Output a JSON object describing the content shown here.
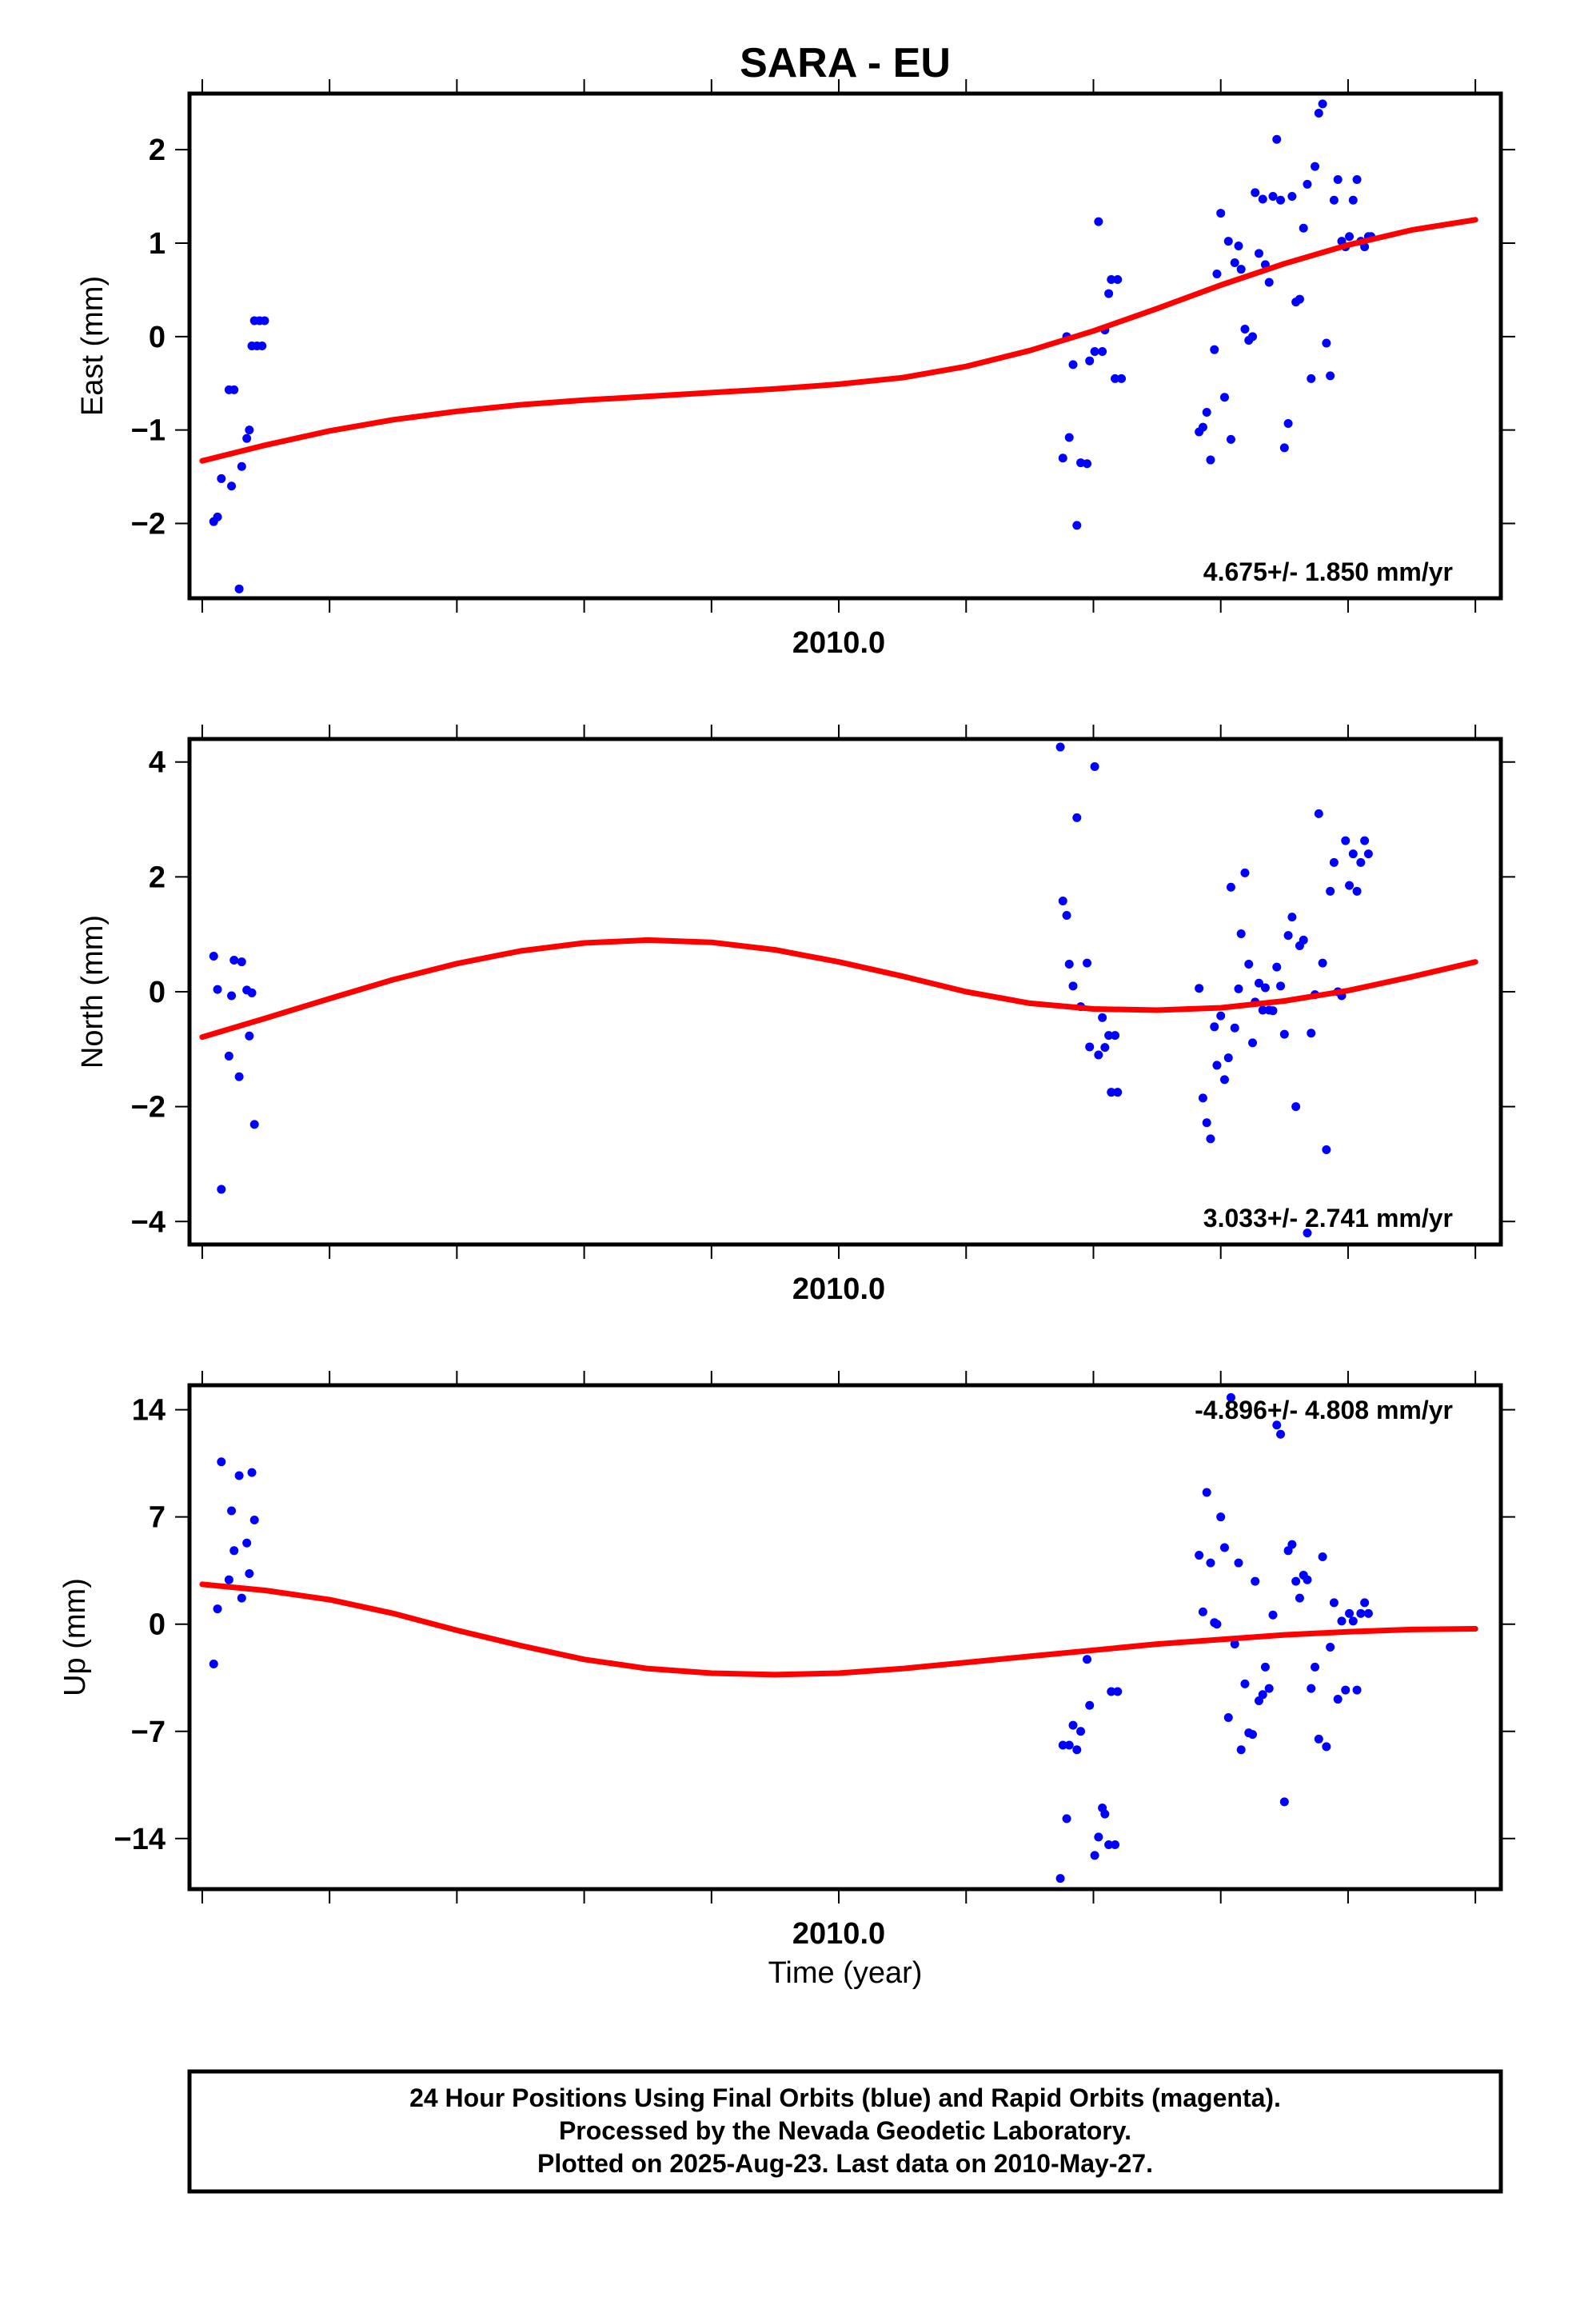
{
  "colors": {
    "data_points": "#0000ff",
    "fit_line": "#ff0000",
    "frame": "#000000",
    "background": "#ffffff"
  },
  "footer": {
    "lines": [
      "24 Hour Positions Using Final Orbits (blue) and Rapid Orbits (magenta).",
      "Processed by the Nevada Geodetic Laboratory.",
      "Plotted on 2025-Aug-23. Last data on 2010-May-27."
    ]
  },
  "chart_data": [
    {
      "type": "scatter",
      "title": "SARA - EU",
      "xlabel": "",
      "ylabel": "East (mm)",
      "xlim": [
        2009.49,
        2010.52
      ],
      "ylim": [
        -2.8,
        2.6
      ],
      "yticks": [
        2,
        1,
        0,
        -1,
        -2
      ],
      "ytick_labels": [
        "2",
        "1",
        "0",
        "−1",
        "−2"
      ],
      "xticks": [
        2009.5,
        2009.6,
        2009.7,
        2009.8,
        2009.9,
        2010.0,
        2010.1,
        2010.2,
        2010.3,
        2010.4,
        2010.5
      ],
      "xtick_labels": [
        "",
        "",
        "",
        "",
        "",
        "2010.0",
        "",
        "",
        "",
        "",
        ""
      ],
      "grid": false,
      "rate_text": "4.675+/- 1.850 mm/yr",
      "rate_position": "bottom-right",
      "series": [
        {
          "kind": "points",
          "x": [
            2009.509,
            2009.512,
            2009.515,
            2009.521,
            2009.523,
            2009.525,
            2009.529,
            2009.531,
            2009.535,
            2009.537,
            2009.539,
            2009.541,
            2009.543,
            2009.545,
            2009.547,
            2009.549
          ],
          "y": [
            -1.98,
            -1.93,
            -1.52,
            -0.57,
            -1.6,
            -0.57,
            -2.7,
            -1.39,
            -1.09,
            -1.0,
            -0.1,
            0.17,
            -0.1,
            0.17,
            -0.1,
            0.17
          ]
        },
        {
          "kind": "points",
          "x": [
            2010.176,
            2010.179,
            2010.181,
            2010.184,
            2010.187,
            2010.19,
            2010.195,
            2010.197,
            2010.201,
            2010.204,
            2010.207,
            2010.209,
            2010.212,
            2010.214,
            2010.217,
            2010.219,
            2010.222
          ],
          "y": [
            -1.3,
            0.0,
            -1.08,
            -0.3,
            -2.02,
            -1.35,
            -1.36,
            -0.26,
            -0.16,
            1.23,
            -0.16,
            0.07,
            0.46,
            0.61,
            -0.45,
            0.61,
            -0.45
          ]
        },
        {
          "kind": "points",
          "x": [
            2010.283,
            2010.286,
            2010.289,
            2010.292,
            2010.295,
            2010.297,
            2010.3,
            2010.303,
            2010.306,
            2010.308,
            2010.311,
            2010.314,
            2010.316,
            2010.319,
            2010.322,
            2010.325,
            2010.327,
            2010.33,
            2010.333,
            2010.335,
            2010.338,
            2010.341,
            2010.344,
            2010.347,
            2010.35,
            2010.353,
            2010.356,
            2010.359,
            2010.362,
            2010.365,
            2010.368,
            2010.371,
            2010.374,
            2010.377,
            2010.38,
            2010.383,
            2010.386,
            2010.389,
            2010.392,
            2010.395,
            2010.398,
            2010.401,
            2010.404,
            2010.407,
            2010.41,
            2010.413,
            2010.416,
            2010.418
          ],
          "y": [
            -1.02,
            -0.97,
            -0.81,
            -1.32,
            -0.14,
            0.67,
            1.32,
            -0.65,
            1.02,
            -1.1,
            0.79,
            0.97,
            0.72,
            0.08,
            -0.04,
            0.0,
            1.54,
            0.89,
            1.47,
            0.77,
            0.58,
            1.5,
            2.11,
            1.46,
            -1.19,
            -0.93,
            1.5,
            0.37,
            0.4,
            1.16,
            1.63,
            -0.45,
            1.82,
            2.39,
            2.49,
            -0.07,
            -0.42,
            1.46,
            1.68,
            1.02,
            0.96,
            1.07,
            1.46,
            1.68,
            1.02,
            0.96,
            1.07,
            1.07
          ]
        },
        {
          "kind": "fit",
          "x": [
            2009.5,
            2009.55,
            2009.6,
            2009.65,
            2009.7,
            2009.75,
            2009.8,
            2009.85,
            2009.9,
            2009.95,
            2010.0,
            2010.05,
            2010.1,
            2010.15,
            2010.2,
            2010.25,
            2010.3,
            2010.35,
            2010.4,
            2010.45,
            2010.5
          ],
          "y": [
            -1.33,
            -1.16,
            -1.01,
            -0.89,
            -0.8,
            -0.73,
            -0.68,
            -0.64,
            -0.6,
            -0.56,
            -0.51,
            -0.44,
            -0.32,
            -0.15,
            0.06,
            0.3,
            0.55,
            0.78,
            0.98,
            1.14,
            1.25
          ]
        }
      ]
    },
    {
      "type": "scatter",
      "title": "",
      "xlabel": "",
      "ylabel": "North (mm)",
      "xlim": [
        2009.49,
        2010.52
      ],
      "ylim": [
        -4.4,
        4.4
      ],
      "yticks": [
        4,
        2,
        0,
        -2,
        -4
      ],
      "ytick_labels": [
        "4",
        "2",
        "0",
        "−2",
        "−4"
      ],
      "xticks": [
        2009.5,
        2009.6,
        2009.7,
        2009.8,
        2009.9,
        2010.0,
        2010.1,
        2010.2,
        2010.3,
        2010.4,
        2010.5
      ],
      "xtick_labels": [
        "",
        "",
        "",
        "",
        "",
        "2010.0",
        "",
        "",
        "",
        "",
        ""
      ],
      "grid": false,
      "rate_text": "3.033+/- 2.741 mm/yr",
      "rate_position": "bottom-right",
      "series": [
        {
          "kind": "points",
          "x": [
            2009.509,
            2009.512,
            2009.515,
            2009.521,
            2009.523,
            2009.525,
            2009.529,
            2009.531,
            2009.535,
            2009.537,
            2009.539,
            2009.541
          ],
          "y": [
            0.62,
            0.04,
            -3.44,
            -1.12,
            -0.07,
            0.55,
            -1.48,
            0.52,
            0.03,
            -0.77,
            -0.02,
            -2.31
          ]
        },
        {
          "kind": "points",
          "x": [
            2010.174,
            2010.176,
            2010.179,
            2010.181,
            2010.184,
            2010.187,
            2010.19,
            2010.195,
            2010.197,
            2010.201,
            2010.204,
            2010.207,
            2010.209,
            2010.212,
            2010.214,
            2010.217,
            2010.219
          ],
          "y": [
            4.26,
            1.58,
            1.33,
            0.48,
            0.1,
            3.03,
            -0.26,
            0.5,
            -0.96,
            3.92,
            -1.1,
            -0.45,
            -0.97,
            -0.76,
            -1.75,
            -0.76,
            -1.75
          ]
        },
        {
          "kind": "points",
          "x": [
            2010.283,
            2010.286,
            2010.289,
            2010.292,
            2010.295,
            2010.297,
            2010.3,
            2010.303,
            2010.306,
            2010.308,
            2010.311,
            2010.314,
            2010.316,
            2010.319,
            2010.322,
            2010.325,
            2010.327,
            2010.33,
            2010.333,
            2010.335,
            2010.338,
            2010.341,
            2010.344,
            2010.347,
            2010.35,
            2010.353,
            2010.356,
            2010.359,
            2010.362,
            2010.365,
            2010.368,
            2010.371,
            2010.374,
            2010.377,
            2010.38,
            2010.383,
            2010.386,
            2010.389,
            2010.392,
            2010.395,
            2010.398,
            2010.401,
            2010.404,
            2010.407,
            2010.41,
            2010.413,
            2010.416
          ],
          "y": [
            0.06,
            -1.85,
            -2.28,
            -2.56,
            -0.61,
            -1.28,
            -0.42,
            -1.53,
            -1.15,
            1.82,
            -0.63,
            0.05,
            1.01,
            2.07,
            0.48,
            -0.89,
            -0.18,
            0.15,
            -0.32,
            0.07,
            -0.32,
            -0.33,
            0.43,
            0.1,
            -0.74,
            0.98,
            1.3,
            -2.0,
            0.8,
            0.9,
            -4.2,
            -0.72,
            -0.05,
            3.1,
            0.5,
            -2.75,
            1.75,
            2.25,
            0.0,
            -0.07,
            2.63,
            1.85,
            2.4,
            1.75,
            2.25,
            2.63,
            2.4
          ]
        },
        {
          "kind": "fit",
          "x": [
            2009.5,
            2009.55,
            2009.6,
            2009.65,
            2009.7,
            2009.75,
            2009.8,
            2009.85,
            2009.9,
            2009.95,
            2010.0,
            2010.05,
            2010.1,
            2010.15,
            2010.2,
            2010.25,
            2010.3,
            2010.35,
            2010.4,
            2010.45,
            2010.5
          ],
          "y": [
            -0.79,
            -0.46,
            -0.12,
            0.21,
            0.49,
            0.71,
            0.85,
            0.9,
            0.86,
            0.73,
            0.52,
            0.27,
            0.0,
            -0.2,
            -0.3,
            -0.32,
            -0.28,
            -0.16,
            0.02,
            0.26,
            0.52
          ]
        }
      ]
    },
    {
      "type": "scatter",
      "title": "",
      "xlabel": "Time (year)",
      "ylabel": "Up (mm)",
      "xlim": [
        2009.49,
        2010.52
      ],
      "ylim": [
        -17.3,
        15.6
      ],
      "yticks": [
        14,
        7,
        0,
        -7,
        -14
      ],
      "ytick_labels": [
        "14",
        "7",
        "0",
        "−7",
        "−14"
      ],
      "xticks": [
        2009.5,
        2009.6,
        2009.7,
        2009.8,
        2009.9,
        2010.0,
        2010.1,
        2010.2,
        2010.3,
        2010.4,
        2010.5
      ],
      "xtick_labels": [
        "",
        "",
        "",
        "",
        "",
        "2010.0",
        "",
        "",
        "",
        "",
        ""
      ],
      "grid": false,
      "rate_text": "-4.896+/- 4.808 mm/yr",
      "rate_position": "top-right",
      "series": [
        {
          "kind": "points",
          "x": [
            2009.509,
            2009.512,
            2009.515,
            2009.521,
            2009.523,
            2009.525,
            2009.529,
            2009.531,
            2009.535,
            2009.537,
            2009.539,
            2009.541
          ],
          "y": [
            -2.6,
            1.0,
            10.6,
            2.9,
            7.4,
            4.8,
            9.7,
            1.7,
            5.3,
            3.3,
            9.9,
            6.8
          ]
        },
        {
          "kind": "points",
          "x": [
            2010.174,
            2010.176,
            2010.179,
            2010.181,
            2010.184,
            2010.187,
            2010.19,
            2010.195,
            2010.197,
            2010.201,
            2010.204,
            2010.207,
            2010.209,
            2010.212,
            2010.214,
            2010.217,
            2010.219
          ],
          "y": [
            -16.6,
            -7.9,
            -12.7,
            -7.9,
            -6.6,
            -8.2,
            -7.0,
            -2.3,
            -5.3,
            -15.1,
            -13.9,
            -12.0,
            -12.4,
            -14.4,
            -4.4,
            -14.4,
            -4.4
          ]
        },
        {
          "kind": "points",
          "x": [
            2010.283,
            2010.286,
            2010.289,
            2010.292,
            2010.295,
            2010.297,
            2010.3,
            2010.303,
            2010.306,
            2010.308,
            2010.311,
            2010.314,
            2010.316,
            2010.319,
            2010.322,
            2010.325,
            2010.327,
            2010.33,
            2010.333,
            2010.335,
            2010.338,
            2010.341,
            2010.344,
            2010.347,
            2010.35,
            2010.353,
            2010.356,
            2010.359,
            2010.362,
            2010.365,
            2010.368,
            2010.371,
            2010.374,
            2010.377,
            2010.38,
            2010.383,
            2010.386,
            2010.389,
            2010.392,
            2010.395,
            2010.398,
            2010.401,
            2010.404,
            2010.407,
            2010.41,
            2010.413,
            2010.416
          ],
          "y": [
            4.5,
            0.8,
            8.6,
            4.0,
            0.1,
            0.0,
            7.0,
            5.0,
            -6.1,
            14.8,
            -1.3,
            4.0,
            -8.2,
            -3.9,
            -7.1,
            -7.2,
            2.8,
            -5.0,
            -4.6,
            -2.8,
            -4.2,
            0.6,
            13.0,
            12.4,
            -11.6,
            4.8,
            5.2,
            2.8,
            1.7,
            3.2,
            2.9,
            -4.2,
            -2.8,
            -7.5,
            4.4,
            -8.0,
            -1.5,
            1.4,
            -4.9,
            0.2,
            -4.3,
            0.7,
            0.2,
            -4.3,
            0.7,
            1.4,
            0.7
          ]
        },
        {
          "kind": "fit",
          "x": [
            2009.5,
            2009.55,
            2009.6,
            2009.65,
            2009.7,
            2009.75,
            2009.8,
            2009.85,
            2009.9,
            2009.95,
            2010.0,
            2010.05,
            2010.1,
            2010.15,
            2010.2,
            2010.25,
            2010.3,
            2010.35,
            2010.4,
            2010.45,
            2010.5
          ],
          "y": [
            2.6,
            2.2,
            1.6,
            0.7,
            -0.4,
            -1.4,
            -2.3,
            -2.9,
            -3.2,
            -3.3,
            -3.2,
            -2.9,
            -2.5,
            -2.1,
            -1.7,
            -1.3,
            -1.0,
            -0.7,
            -0.5,
            -0.35,
            -0.3
          ]
        }
      ]
    }
  ]
}
